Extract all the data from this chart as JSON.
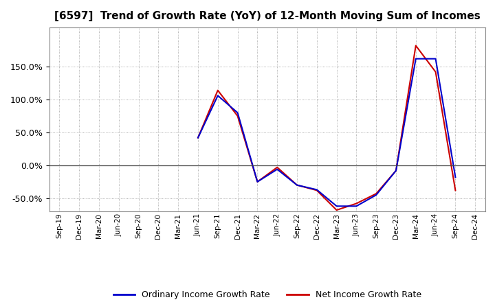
{
  "title": "[6597]  Trend of Growth Rate (YoY) of 12-Month Moving Sum of Incomes",
  "x_labels": [
    "Sep-19",
    "Dec-19",
    "Mar-20",
    "Jun-20",
    "Sep-20",
    "Dec-20",
    "Mar-21",
    "Jun-21",
    "Sep-21",
    "Dec-21",
    "Mar-22",
    "Jun-22",
    "Sep-22",
    "Dec-22",
    "Mar-23",
    "Jun-23",
    "Sep-23",
    "Dec-23",
    "Mar-24",
    "Jun-24",
    "Sep-24",
    "Dec-24"
  ],
  "ordinary_income": [
    null,
    null,
    null,
    null,
    null,
    null,
    null,
    0.42,
    1.06,
    0.8,
    -0.25,
    -0.06,
    -0.3,
    -0.37,
    -0.62,
    -0.62,
    -0.45,
    -0.08,
    1.62,
    1.62,
    -0.18,
    null
  ],
  "net_income": [
    null,
    null,
    null,
    null,
    null,
    null,
    null,
    0.42,
    1.14,
    0.75,
    -0.25,
    -0.03,
    -0.3,
    -0.38,
    -0.68,
    -0.58,
    -0.43,
    -0.08,
    1.82,
    1.42,
    -0.38,
    null
  ],
  "ordinary_color": "#0000cc",
  "net_color": "#cc0000",
  "ylim": [
    -0.7,
    2.1
  ],
  "yticks": [
    -0.5,
    0.0,
    0.5,
    1.0,
    1.5
  ],
  "background_color": "#ffffff",
  "grid_color": "#999999",
  "legend_ordinary": "Ordinary Income Growth Rate",
  "legend_net": "Net Income Growth Rate"
}
